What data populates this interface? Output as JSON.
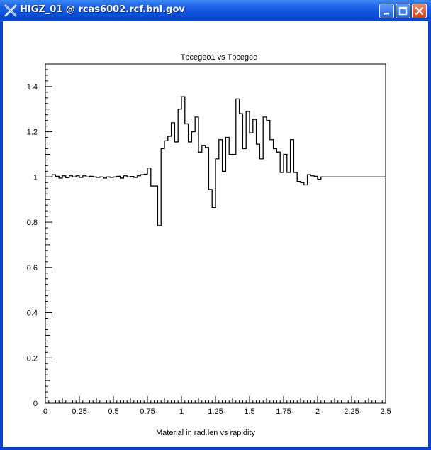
{
  "window": {
    "title": "HIGZ_01 @ rcas6002.rcf.bnl.gov",
    "icon": "higz-x-icon",
    "buttons": [
      "minimize-icon",
      "maximize-icon",
      "close-icon"
    ]
  },
  "chart_data": {
    "type": "histogram",
    "title": "Tpcegeo1 vs Tpcegeo",
    "xlabel": "Material in rad.len vs rapidity",
    "ylabel": "",
    "xlim": [
      0,
      2.5
    ],
    "ylim": [
      0,
      1.5
    ],
    "xticks": [
      "0",
      "0.25",
      "0.5",
      "0.75",
      "1",
      "1.25",
      "1.5",
      "1.75",
      "2",
      "2.25",
      "2.5"
    ],
    "yticks": [
      "0",
      "0.2",
      "0.4",
      "0.6",
      "0.8",
      "1",
      "1.2",
      "1.4"
    ],
    "bin_width": 0.025,
    "values": [
      1.0,
      1.0,
      1.01,
      1.003,
      0.995,
      1.005,
      0.997,
      1.005,
      1.0,
      1.005,
      0.998,
      1.005,
      1.0,
      1.003,
      1.0,
      0.998,
      1.0,
      0.995,
      1.0,
      0.998,
      1.0,
      1.003,
      0.995,
      1.005,
      1.0,
      1.002,
      0.998,
      1.005,
      1.01,
      1.012,
      1.04,
      0.96,
      0.96,
      0.785,
      1.125,
      1.16,
      1.18,
      1.24,
      1.155,
      1.3,
      1.355,
      1.235,
      1.155,
      1.2,
      1.265,
      1.11,
      1.14,
      1.13,
      0.945,
      0.865,
      1.08,
      1.165,
      1.025,
      1.175,
      1.1,
      1.1,
      1.345,
      1.28,
      1.125,
      1.29,
      1.195,
      1.255,
      1.145,
      1.08,
      1.265,
      1.25,
      1.165,
      1.125,
      1.11,
      1.02,
      1.1,
      1.02,
      1.165,
      1.02,
      0.98,
      0.975,
      0.965,
      1.01,
      1.005,
      1.003,
      0.99,
      1.0,
      1.0,
      1.0,
      1.0,
      1.0,
      1.0,
      1.0,
      1.0,
      1.0,
      1.0,
      1.0,
      1.0,
      1.0,
      1.0,
      1.0,
      1.0,
      1.0,
      1.0,
      1.0
    ],
    "grid": false,
    "legend": false
  }
}
